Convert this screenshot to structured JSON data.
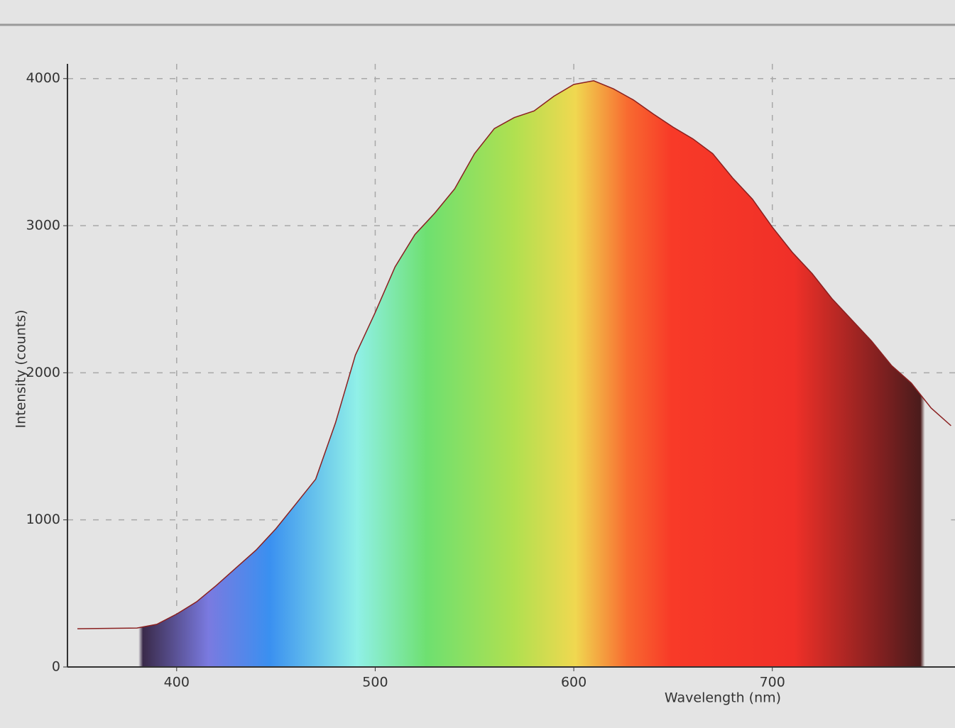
{
  "chart_data": {
    "type": "area",
    "y_label": "Intensity (counts)",
    "x_label": "Wavelength (nm)",
    "x": [
      350,
      380,
      390,
      400,
      410,
      420,
      430,
      440,
      450,
      460,
      470,
      480,
      490,
      500,
      510,
      520,
      530,
      540,
      550,
      560,
      570,
      580,
      590,
      600,
      610,
      620,
      630,
      640,
      650,
      660,
      670,
      680,
      690,
      700,
      710,
      720,
      730,
      740,
      750,
      760,
      770,
      780,
      790
    ],
    "values": [
      260,
      265,
      290,
      360,
      443,
      554,
      675,
      795,
      940,
      1108,
      1277,
      1660,
      2120,
      2410,
      2720,
      2940,
      3085,
      3250,
      3490,
      3660,
      3735,
      3780,
      3880,
      3960,
      3985,
      3930,
      3855,
      3760,
      3670,
      3590,
      3490,
      3325,
      3180,
      2990,
      2820,
      2675,
      2505,
      2360,
      2215,
      2050,
      1930,
      1760,
      1640
    ],
    "color": "#8a2020",
    "xlim": [
      345,
      792
    ],
    "ylim": [
      0,
      4100
    ],
    "xticks": [
      400,
      500,
      600,
      700
    ],
    "yticks": [
      0,
      1000,
      2000,
      3000,
      4000
    ],
    "grid": true
  }
}
